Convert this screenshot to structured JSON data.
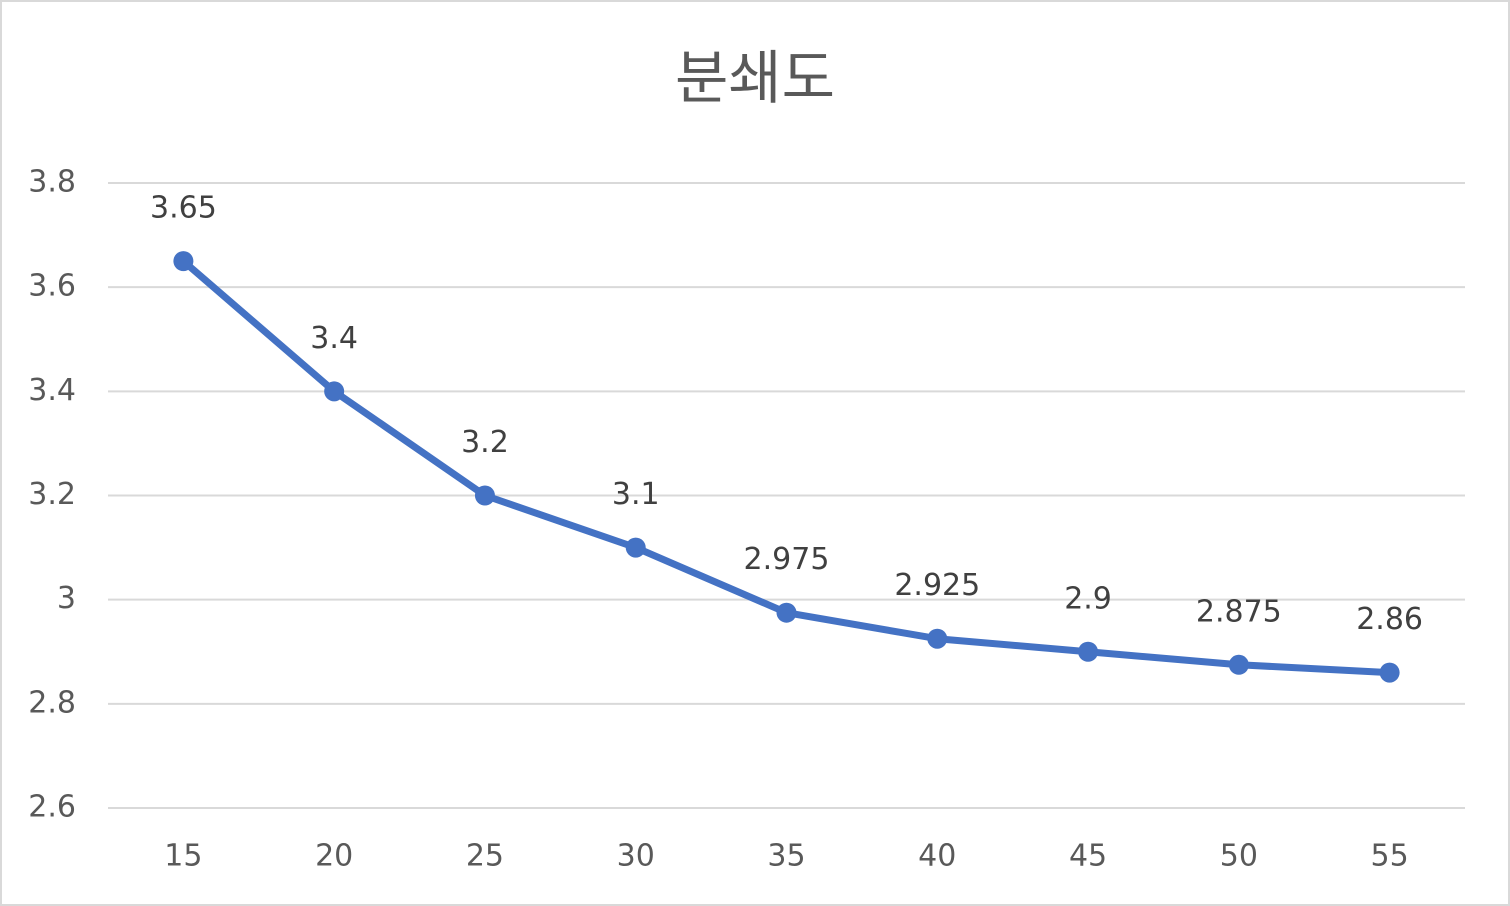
{
  "chart_data": {
    "type": "line",
    "title": "분쇄도",
    "categories": [
      "15",
      "20",
      "25",
      "30",
      "35",
      "40",
      "45",
      "50",
      "55"
    ],
    "values": [
      3.65,
      3.4,
      3.2,
      3.1,
      2.975,
      2.925,
      2.9,
      2.875,
      2.86
    ],
    "color": "#4472c4",
    "ylim": [
      2.6,
      3.8
    ],
    "yticks": [
      2.6,
      2.8,
      3,
      3.2,
      3.4,
      3.6,
      3.8
    ],
    "grid": true
  }
}
